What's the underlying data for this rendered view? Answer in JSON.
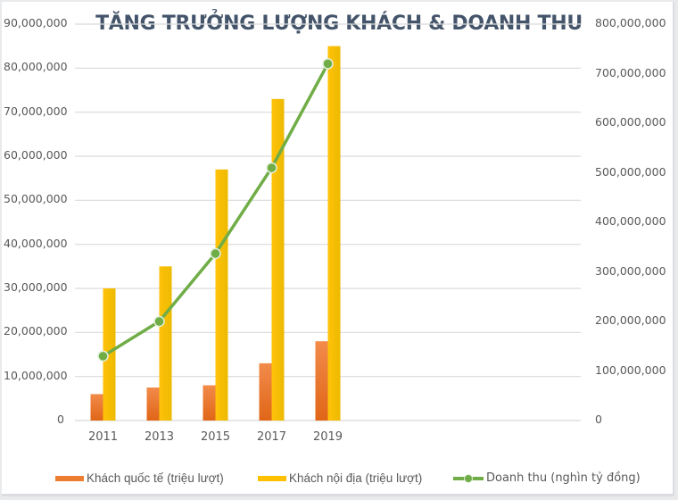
{
  "chart_data": {
    "type": "bar+line",
    "title": "TĂNG TRƯỞNG LƯỢNG KHÁCH & DOANH THU",
    "categories": [
      "2011",
      "2013",
      "2015",
      "2017",
      "2019"
    ],
    "series": [
      {
        "name": "Khách quốc tế (triệu lượt)",
        "type": "bar",
        "axis": "left",
        "color": "#ed7d31",
        "values": [
          6000000,
          7500000,
          8000000,
          13000000,
          18000000
        ]
      },
      {
        "name": "Khách nội địa (triệu lượt)",
        "type": "bar",
        "axis": "left",
        "color": "#ffc000",
        "values": [
          30000000,
          35000000,
          57000000,
          73000000,
          85000000
        ]
      },
      {
        "name": "Doanh thu (nghìn tỷ đồng)",
        "type": "line",
        "axis": "right",
        "color": "#70ad47",
        "marker": "circle",
        "values": [
          130000000,
          200000000,
          337000000,
          510000000,
          720000000
        ]
      }
    ],
    "xlabel": "",
    "ylabel_left": "",
    "ylabel_right": "",
    "ylim_left": [
      0,
      90000000
    ],
    "ylim_right": [
      0,
      800000000
    ],
    "yticks_left": [
      "0",
      "10,000,000",
      "20,000,000",
      "30,000,000",
      "40,000,000",
      "50,000,000",
      "60,000,000",
      "70,000,000",
      "80,000,000",
      "90,000,000"
    ],
    "yticks_right": [
      "0",
      "100,000,000",
      "200,000,000",
      "300,000,000",
      "400,000,000",
      "500,000,000",
      "600,000,000",
      "700,000,000",
      "800,000,000"
    ],
    "grid": true,
    "legend_position": "bottom",
    "empty_category_slots_after": 4
  },
  "legend": [
    {
      "label": "Khách quốc tế (triệu lượt)",
      "icon": "orange-bar-swatch"
    },
    {
      "label": "Khách nội địa (triệu lượt)",
      "icon": "yellow-bar-swatch"
    },
    {
      "label": "Doanh thu (nghìn tỷ đồng)",
      "icon": "green-line-marker"
    }
  ],
  "colors": {
    "intl": "#ed7d31",
    "intl_dark": "#e0661a",
    "domestic": "#ffc000",
    "domestic_dark": "#e8b400",
    "revenue": "#70ad47",
    "grid": "#d9d9d9",
    "title": "#44546a",
    "axis_text": "#595959"
  }
}
